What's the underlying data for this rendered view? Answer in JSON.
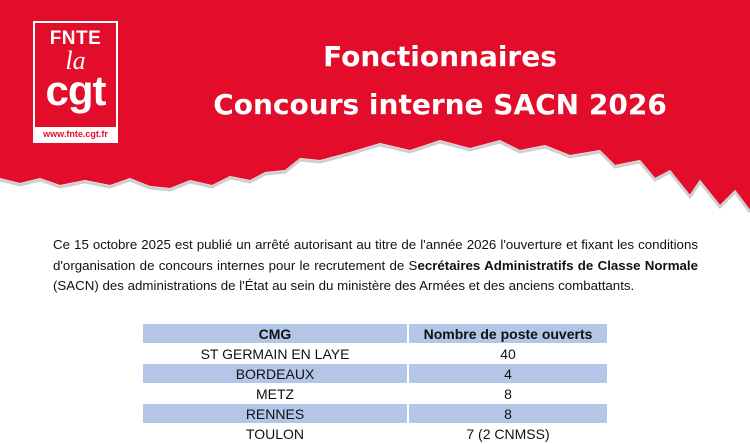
{
  "logo": {
    "line1": "FNTE",
    "line2": "la",
    "line3": "cgt",
    "url": "www.fnte.cgt.fr"
  },
  "header": {
    "title_line1": "Fonctionnaires",
    "title_line2": "Concours interne SACN 2026"
  },
  "colors": {
    "brand_red": "#e30d2b",
    "table_band": "#b4c6e7"
  },
  "body": {
    "p1": "Ce 15 octobre 2025 est publié un arrêté autorisant au titre de l'année 2026 l'ouverture et fixant les conditions d'organisation de concours internes pour le recrutement de S",
    "p_bold": "ecrétaires Administratifs de Classe Normale",
    "p2": " (SACN) des administrations de l'État au sein du ministère des Armées et des anciens combattants."
  },
  "table": {
    "headers": [
      "CMG",
      "Nombre de poste ouverts"
    ],
    "rows": [
      [
        "ST GERMAIN EN LAYE",
        "40"
      ],
      [
        "BORDEAUX",
        "4"
      ],
      [
        "METZ",
        "8"
      ],
      [
        "RENNES",
        "8"
      ],
      [
        "TOULON",
        "7 (2 CNMSS)"
      ]
    ]
  }
}
